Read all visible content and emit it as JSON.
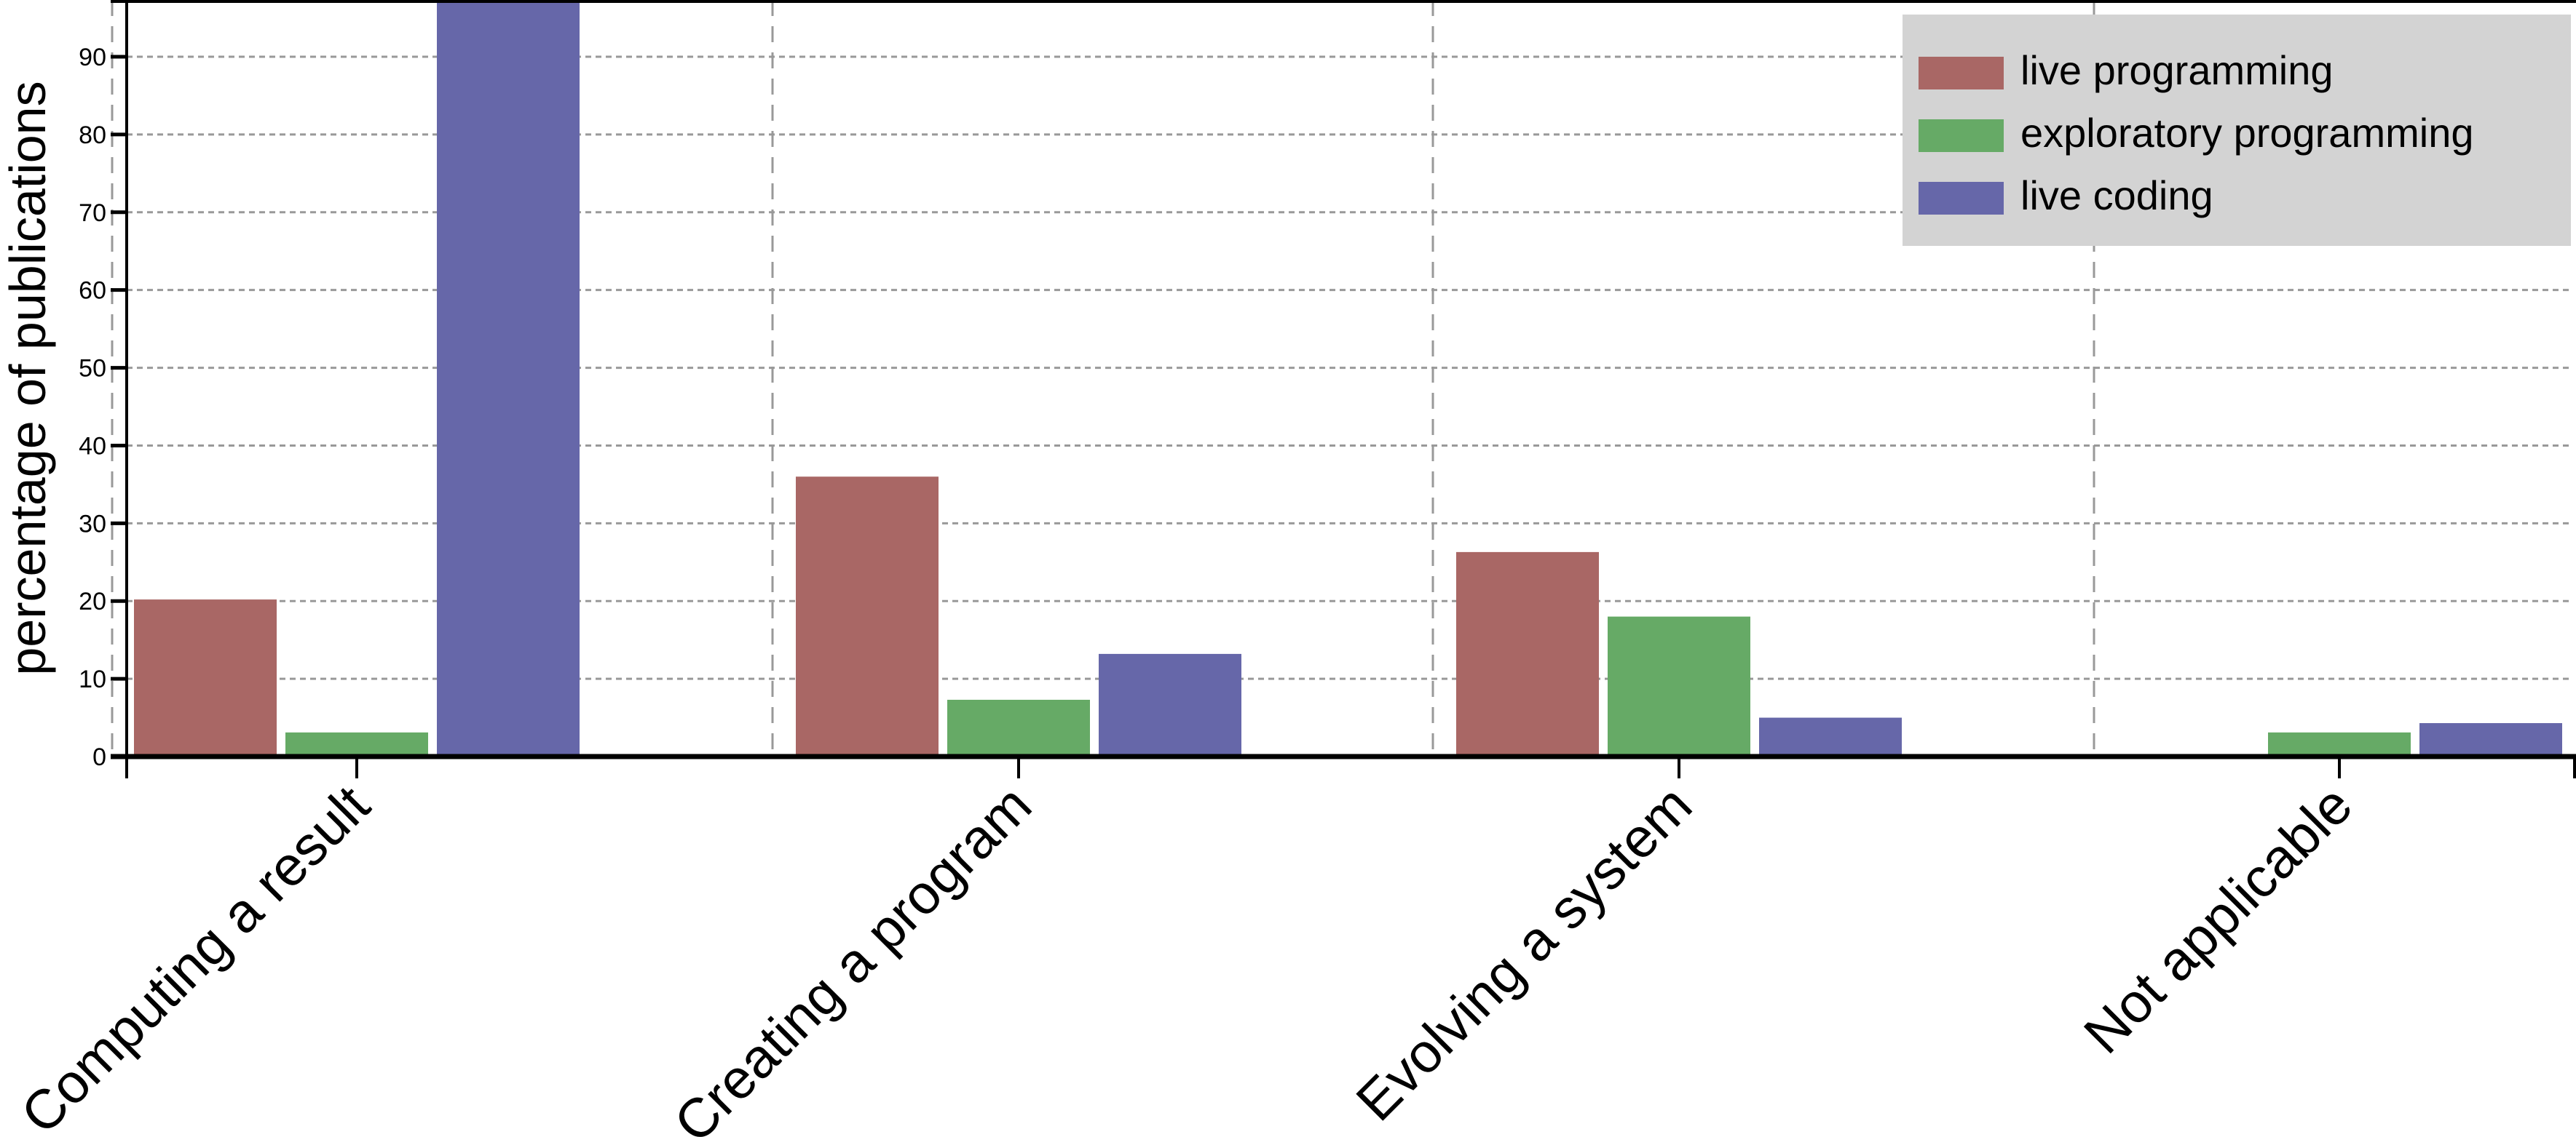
{
  "chart_data": {
    "type": "bar",
    "title": "",
    "xlabel": "",
    "ylabel": "percentage of publications",
    "ylim": [
      0,
      97.3
    ],
    "yticks": [
      "0",
      "10",
      "20",
      "30",
      "40",
      "50",
      "60",
      "70",
      "80",
      "90"
    ],
    "categories": [
      "Computing a result",
      "Creating a program",
      "Evolving a system",
      "Not applicable"
    ],
    "series": [
      {
        "name": "live programming",
        "color": "#a96765",
        "values": [
          20.2,
          36.0,
          26.3,
          0
        ]
      },
      {
        "name": "exploratory programming",
        "color": "#66aa66",
        "values": [
          3.1,
          7.3,
          18.0,
          3.1
        ]
      },
      {
        "name": "live coding",
        "color": "#6667a9",
        "values": [
          100,
          13.2,
          5.0,
          4.3
        ]
      }
    ],
    "grid": true,
    "legend_position": "top-right",
    "legend_background": "#d3d3d3"
  }
}
